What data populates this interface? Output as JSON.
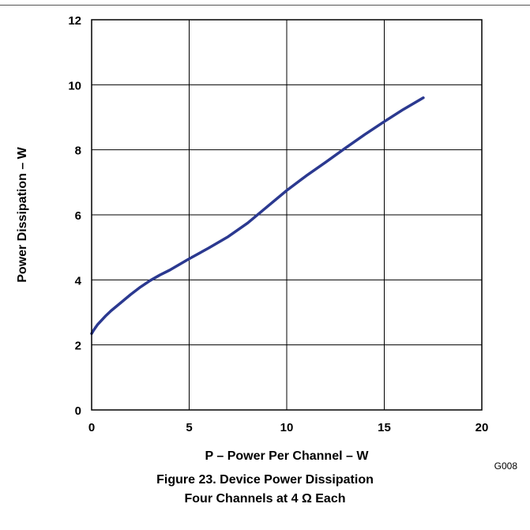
{
  "chart_data": {
    "type": "line",
    "title": "",
    "xlabel": "P – Power Per Channel – W",
    "ylabel": "Power Dissipation – W",
    "xlim": [
      0,
      20
    ],
    "ylim": [
      0,
      12
    ],
    "x_ticks": [
      "0",
      "5",
      "10",
      "15",
      "20"
    ],
    "y_ticks": [
      "0",
      "2",
      "4",
      "6",
      "8",
      "10",
      "12"
    ],
    "grid": true,
    "series": [
      {
        "color": "#2b3990",
        "x": [
          0,
          0.1,
          0.3,
          0.5,
          0.7,
          1.0,
          1.5,
          2.0,
          2.5,
          3.0,
          3.5,
          4.0,
          5.0,
          6.0,
          7.0,
          8.0,
          9.0,
          10.0,
          11.0,
          12.0,
          13.0,
          14.0,
          15.0,
          16.0,
          17.0
        ],
        "y": [
          2.35,
          2.45,
          2.62,
          2.75,
          2.88,
          3.05,
          3.3,
          3.55,
          3.78,
          3.98,
          4.15,
          4.3,
          4.65,
          4.98,
          5.33,
          5.75,
          6.25,
          6.75,
          7.2,
          7.62,
          8.05,
          8.47,
          8.87,
          9.25,
          9.6
        ]
      }
    ]
  },
  "figure_code": "G008",
  "caption": {
    "line1": "Figure 23. Device Power Dissipation",
    "line2": "Four Channels at 4 Ω Each"
  }
}
